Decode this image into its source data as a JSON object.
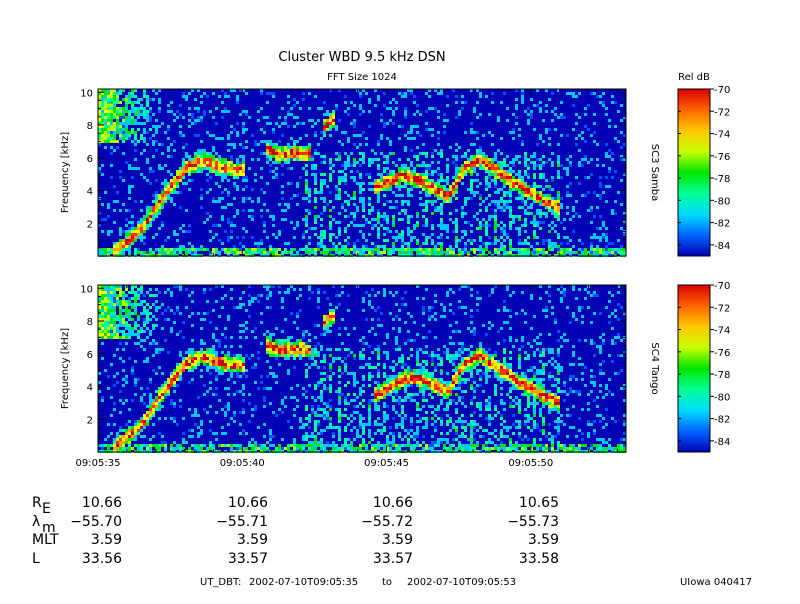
{
  "title": "Cluster WBD 9.5 kHz DSN",
  "subtitle": "FFT Size 1024",
  "colorbar_label": "Rel dB",
  "colors": {
    "background_low": "#0000b4",
    "scale": [
      "#0000b4",
      "#0050ff",
      "#00c8ff",
      "#00ff96",
      "#00e600",
      "#b4ff00",
      "#ffff00",
      "#ffa000",
      "#ff3200",
      "#d20000"
    ]
  },
  "chart_data": [
    {
      "type": "heatmap",
      "spacecraft_label": "SC3 Samba",
      "ylabel": "Frequency [kHz]",
      "ylim": [
        0,
        10.2
      ],
      "yticks": [
        "2",
        "4",
        "6",
        "8",
        "10"
      ],
      "ytick_values": [
        2,
        4,
        6,
        8,
        10
      ],
      "xlim_seconds": [
        35,
        53.3
      ],
      "x_tick_labels": [],
      "colorbar": {
        "min": -85,
        "max": -70,
        "ticks": [
          "-70",
          "-72",
          "-74",
          "-76",
          "-78",
          "-80",
          "-82",
          "-84"
        ],
        "tick_values": [
          -70,
          -72,
          -74,
          -76,
          -78,
          -80,
          -82,
          -84
        ]
      },
      "emission_tracks": [
        {
          "times": [
            35.5,
            36.5,
            37.0,
            37.5,
            38.0,
            38.6,
            39.1,
            39.6,
            40.0
          ],
          "freqs_khz": [
            0.3,
            1.8,
            3.2,
            4.4,
            5.5,
            5.9,
            5.6,
            5.4,
            5.3
          ]
        },
        {
          "times": [
            40.8,
            41.3,
            41.8,
            42.3
          ],
          "freqs_khz": [
            6.6,
            6.3,
            6.4,
            6.3
          ]
        },
        {
          "times": [
            42.7,
            43.0,
            43.2
          ],
          "freqs_khz": [
            7.8,
            8.3,
            8.6
          ]
        },
        {
          "times": [
            44.5,
            45.5,
            46.0,
            46.6,
            47.1,
            47.6,
            48.2,
            48.9,
            49.7,
            50.5,
            51.0
          ],
          "freqs_khz": [
            4.2,
            5.0,
            4.8,
            4.2,
            3.7,
            5.4,
            6.0,
            5.1,
            4.2,
            3.4,
            3.0
          ]
        }
      ]
    },
    {
      "type": "heatmap",
      "spacecraft_label": "SC4 Tango",
      "ylabel": "Frequency [kHz]",
      "ylim": [
        0,
        10.2
      ],
      "yticks": [
        "2",
        "4",
        "6",
        "8",
        "10"
      ],
      "ytick_values": [
        2,
        4,
        6,
        8,
        10
      ],
      "xlim_seconds": [
        35,
        53.3
      ],
      "x_tick_labels": [
        "09:05:35",
        "09:05:40",
        "09:05:45",
        "09:05:50"
      ],
      "x_tick_values": [
        35,
        40,
        45,
        50
      ],
      "colorbar": {
        "min": -85,
        "max": -70,
        "ticks": [
          "-70",
          "-72",
          "-74",
          "-76",
          "-78",
          "-80",
          "-82",
          "-84"
        ],
        "tick_values": [
          -70,
          -72,
          -74,
          -76,
          -78,
          -80,
          -82,
          -84
        ]
      },
      "emission_tracks": [
        {
          "times": [
            35.5,
            36.5,
            37.0,
            37.5,
            38.0,
            38.6,
            39.1,
            39.6,
            40.0
          ],
          "freqs_khz": [
            0.3,
            1.8,
            3.2,
            4.4,
            5.5,
            5.9,
            5.6,
            5.4,
            5.3
          ]
        },
        {
          "times": [
            40.8,
            41.3,
            41.8,
            42.3
          ],
          "freqs_khz": [
            6.6,
            6.3,
            6.4,
            6.3
          ]
        },
        {
          "times": [
            42.7,
            43.0,
            43.2
          ],
          "freqs_khz": [
            7.8,
            8.3,
            8.6
          ]
        },
        {
          "times": [
            44.5,
            45.5,
            46.0,
            46.6,
            47.1,
            47.6,
            48.2,
            48.9,
            49.7,
            50.5,
            51.0
          ],
          "freqs_khz": [
            3.5,
            4.5,
            4.6,
            4.2,
            3.8,
            5.4,
            6.0,
            5.1,
            4.2,
            3.4,
            3.0
          ]
        }
      ]
    }
  ],
  "ephemeris": {
    "rows": [
      {
        "label_main": "R",
        "label_sub": "E",
        "values": [
          "10.66",
          "10.66",
          "10.66",
          "10.65"
        ]
      },
      {
        "label_main": "λ",
        "label_sub": "m",
        "values": [
          "−55.70",
          "−55.71",
          "−55.72",
          "−55.73"
        ]
      },
      {
        "label_main": "MLT",
        "label_sub": "",
        "values": [
          "3.59",
          "3.59",
          "3.59",
          "3.59"
        ]
      },
      {
        "label_main": "L",
        "label_sub": "",
        "values": [
          "33.56",
          "33.57",
          "33.57",
          "33.58"
        ]
      }
    ]
  },
  "footer": {
    "time_label": "UT_DBT:",
    "start": "2002-07-10T09:05:35",
    "to": "to",
    "end": "2002-07-10T09:05:53",
    "credit": "UIowa 040417"
  }
}
